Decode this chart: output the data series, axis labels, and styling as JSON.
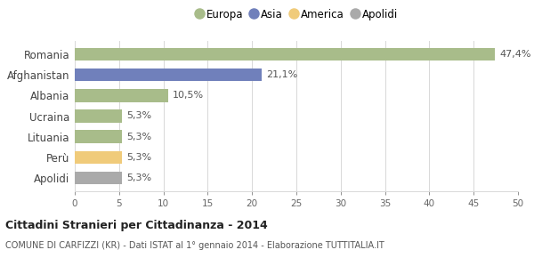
{
  "categories": [
    "Apolidi",
    "Perù",
    "Lituania",
    "Ucraina",
    "Albania",
    "Afghanistan",
    "Romania"
  ],
  "values": [
    5.3,
    5.3,
    5.3,
    5.3,
    10.5,
    21.1,
    47.4
  ],
  "labels": [
    "5,3%",
    "5,3%",
    "5,3%",
    "5,3%",
    "10,5%",
    "21,1%",
    "47,4%"
  ],
  "colors": [
    "#aaaaaa",
    "#f0cb7a",
    "#a8bc8a",
    "#a8bc8a",
    "#a8bc8a",
    "#7080bb",
    "#a8bc8a"
  ],
  "legend": [
    {
      "label": "Europa",
      "color": "#a8bc8a"
    },
    {
      "label": "Asia",
      "color": "#7080bb"
    },
    {
      "label": "America",
      "color": "#f0cb7a"
    },
    {
      "label": "Apolidi",
      "color": "#aaaaaa"
    }
  ],
  "xlim": [
    0,
    50
  ],
  "xticks": [
    0,
    5,
    10,
    15,
    20,
    25,
    30,
    35,
    40,
    45,
    50
  ],
  "title": "Cittadini Stranieri per Cittadinanza - 2014",
  "subtitle": "COMUNE DI CARFIZZI (KR) - Dati ISTAT al 1° gennaio 2014 - Elaborazione TUTTITALIA.IT",
  "bg_color": "#ffffff",
  "grid_color": "#d8d8d8",
  "bar_height": 0.62
}
